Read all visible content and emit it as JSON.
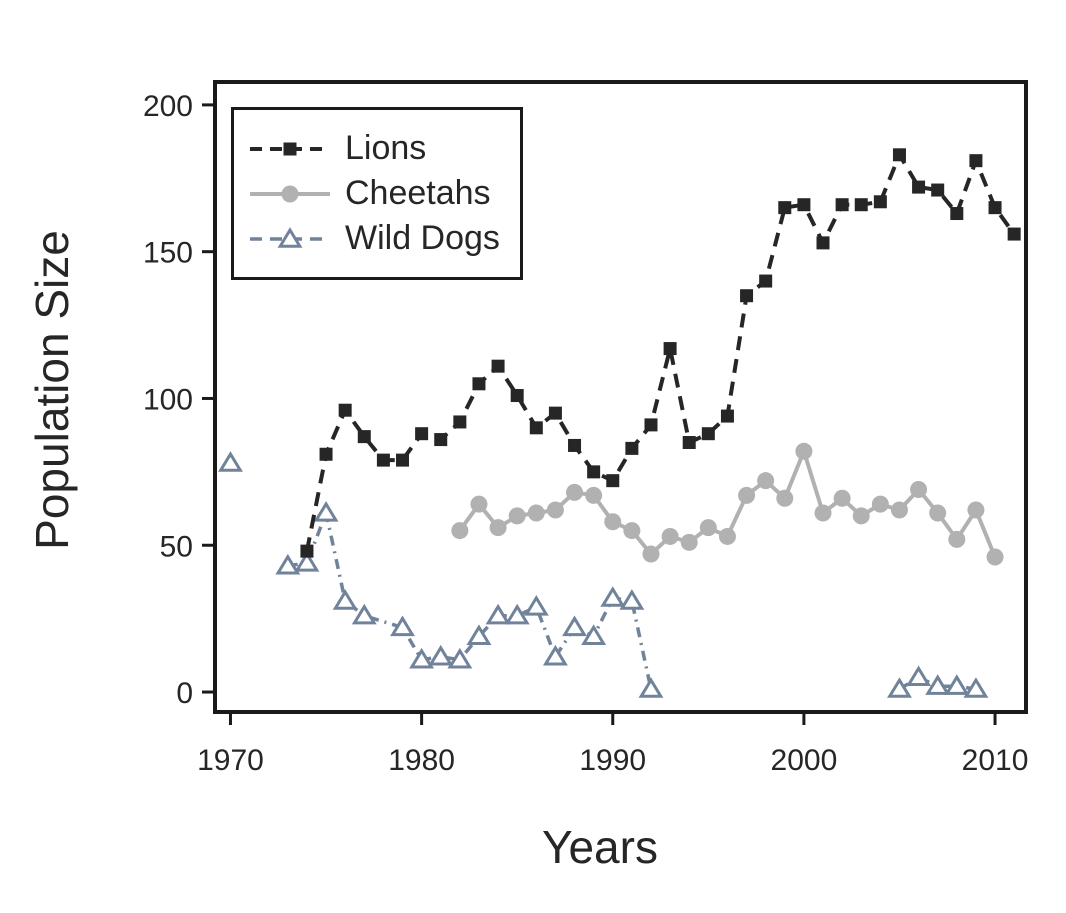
{
  "chart_data": {
    "type": "line",
    "title": "",
    "xlabel": "Years",
    "ylabel": "Population Size",
    "x_ticks": [
      1970,
      1980,
      1990,
      2000,
      2010
    ],
    "y_ticks": [
      0,
      50,
      100,
      150,
      200
    ],
    "xlim": [
      1969.19,
      2011.62
    ],
    "ylim": [
      -6.8,
      207.8
    ],
    "grid": false,
    "legend_position": "top-left",
    "background": "#ffffff",
    "axis_color": "#1a1a1a",
    "text_color": "#262626",
    "series": [
      {
        "name": "Lions",
        "color": "#262626",
        "line_style": "dashed",
        "marker": "filled-square",
        "segments": [
          {
            "x": [
              1974,
              1975,
              1976,
              1977,
              1978,
              1979,
              1980,
              1981,
              1982,
              1983,
              1984,
              1985,
              1986,
              1987,
              1988,
              1989,
              1990,
              1991,
              1992,
              1993,
              1994,
              1995,
              1996,
              1997,
              1998,
              1999,
              2000,
              2001,
              2002,
              2003,
              2004,
              2005,
              2006,
              2007,
              2008,
              2009,
              2010,
              2011
            ],
            "y": [
              48,
              81,
              96,
              87,
              79,
              79,
              88,
              86,
              92,
              105,
              111,
              101,
              90,
              95,
              84,
              75,
              72,
              83,
              91,
              117,
              85,
              88,
              94,
              135,
              140,
              165,
              166,
              153,
              166,
              166,
              167,
              183,
              172,
              171,
              163,
              181,
              165,
              156
            ]
          }
        ]
      },
      {
        "name": "Cheetahs",
        "color": "#b1b1b1",
        "line_style": "solid",
        "marker": "filled-circle",
        "segments": [
          {
            "x": [
              1982,
              1983,
              1984,
              1985,
              1986,
              1987,
              1988,
              1989,
              1990,
              1991,
              1992,
              1993,
              1994,
              1995,
              1996,
              1997,
              1998,
              1999,
              2000,
              2001,
              2002,
              2003,
              2004,
              2005,
              2006,
              2007,
              2008,
              2009,
              2010
            ],
            "y": [
              55,
              64,
              56,
              60,
              61,
              62,
              68,
              67,
              58,
              55,
              47,
              53,
              51,
              56,
              53,
              67,
              72,
              66,
              82,
              61,
              66,
              60,
              64,
              62,
              69,
              61,
              52,
              62,
              46
            ]
          }
        ]
      },
      {
        "name": "Wild Dogs",
        "color": "#71839a",
        "line_style": "dash-dot",
        "marker": "open-triangle",
        "segments": [
          {
            "x": [
              1970
            ],
            "y": [
              78
            ]
          },
          {
            "x": [
              1973,
              1974,
              1975,
              1976,
              1977,
              1979,
              1980,
              1981,
              1982,
              1983,
              1984,
              1985,
              1986,
              1987,
              1988,
              1989,
              1990,
              1991,
              1992
            ],
            "y": [
              43,
              44,
              61,
              31,
              26,
              22,
              11,
              12,
              11,
              19,
              26,
              26,
              29,
              12,
              22,
              19,
              32,
              31,
              1
            ]
          },
          {
            "x": [
              2005,
              2006,
              2007,
              2008,
              2009
            ],
            "y": [
              1,
              5,
              2,
              2,
              1
            ]
          }
        ]
      }
    ]
  }
}
